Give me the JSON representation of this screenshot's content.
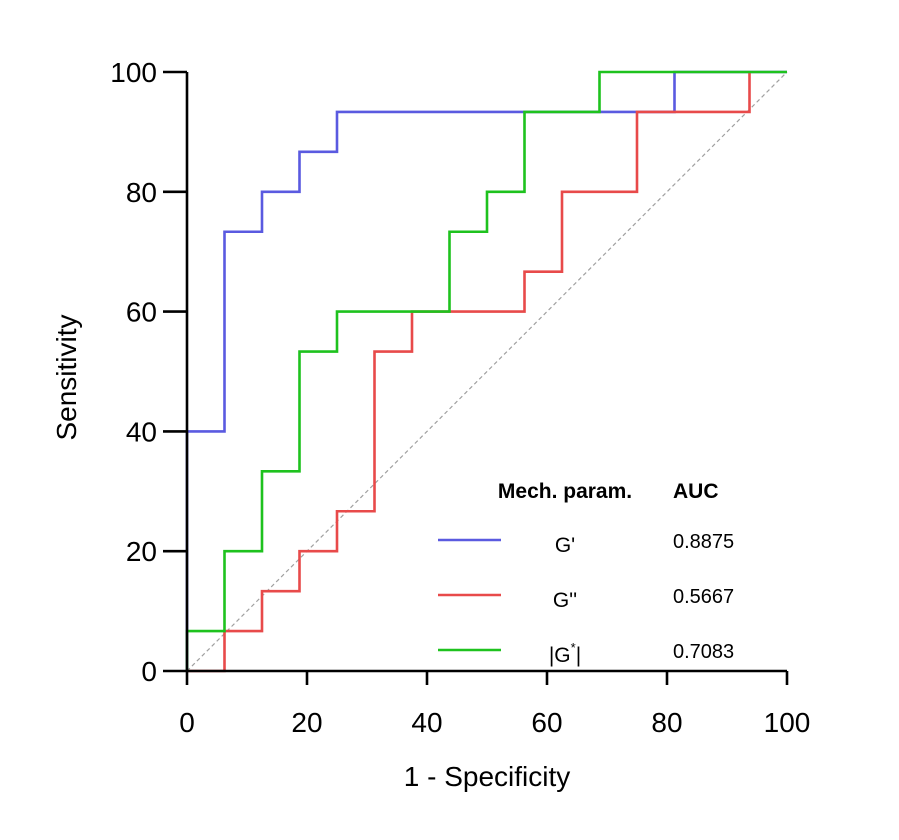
{
  "chart_data": {
    "type": "line",
    "step": true,
    "xlabel": "1 - Specificity",
    "ylabel": "Sensitivity",
    "xlim": [
      0,
      100
    ],
    "ylim": [
      0,
      100
    ],
    "xticks": [
      0,
      20,
      40,
      60,
      80,
      100
    ],
    "yticks": [
      0,
      20,
      40,
      60,
      80,
      100
    ],
    "x_tick_labels": [
      "0",
      "20",
      "40",
      "60",
      "80",
      "100"
    ],
    "y_tick_labels": [
      "0",
      "20",
      "40",
      "60",
      "80",
      "100"
    ],
    "reference_line": {
      "x": [
        0,
        100
      ],
      "y": [
        0,
        100
      ],
      "style": "dashed",
      "color": "#a0a0a0"
    },
    "legend": {
      "header_param": "Mech. param.",
      "header_auc": "AUC",
      "placement": "bottom-right"
    },
    "series": [
      {
        "name": "G'",
        "label_main": "G'",
        "label_sup": "",
        "label_close": "",
        "auc": "0.8875",
        "color": "#5a5ae0",
        "points": [
          [
            0,
            0
          ],
          [
            0,
            40
          ],
          [
            6.25,
            40
          ],
          [
            6.25,
            73.33
          ],
          [
            12.5,
            73.33
          ],
          [
            12.5,
            80
          ],
          [
            18.75,
            80
          ],
          [
            18.75,
            86.67
          ],
          [
            25,
            86.67
          ],
          [
            25,
            93.33
          ],
          [
            81.25,
            93.33
          ],
          [
            81.25,
            100
          ],
          [
            100,
            100
          ]
        ]
      },
      {
        "name": "G''",
        "label_main": "G''",
        "label_sup": "",
        "label_close": "",
        "auc": "0.5667",
        "color": "#e84a4a",
        "points": [
          [
            0,
            0
          ],
          [
            6.25,
            0
          ],
          [
            6.25,
            6.67
          ],
          [
            12.5,
            6.67
          ],
          [
            12.5,
            13.33
          ],
          [
            18.75,
            13.33
          ],
          [
            18.75,
            20
          ],
          [
            25,
            20
          ],
          [
            25,
            26.67
          ],
          [
            31.25,
            26.67
          ],
          [
            31.25,
            53.33
          ],
          [
            37.5,
            53.33
          ],
          [
            37.5,
            60
          ],
          [
            56.25,
            60
          ],
          [
            56.25,
            66.67
          ],
          [
            62.5,
            66.67
          ],
          [
            62.5,
            80
          ],
          [
            75,
            80
          ],
          [
            75,
            93.33
          ],
          [
            93.75,
            93.33
          ],
          [
            93.75,
            100
          ]
        ]
      },
      {
        "name": "|G*|",
        "label_main": "|G",
        "label_sup": "*",
        "label_close": "|",
        "auc": "0.7083",
        "color": "#1ec21e",
        "points": [
          [
            0,
            0
          ],
          [
            0,
            6.67
          ],
          [
            6.25,
            6.67
          ],
          [
            6.25,
            20
          ],
          [
            12.5,
            20
          ],
          [
            12.5,
            33.33
          ],
          [
            18.75,
            33.33
          ],
          [
            18.75,
            53.33
          ],
          [
            25,
            53.33
          ],
          [
            25,
            60
          ],
          [
            43.75,
            60
          ],
          [
            43.75,
            73.33
          ],
          [
            50,
            73.33
          ],
          [
            50,
            80
          ],
          [
            56.25,
            80
          ],
          [
            56.25,
            93.33
          ],
          [
            68.75,
            93.33
          ],
          [
            68.75,
            100
          ],
          [
            100,
            100
          ]
        ]
      }
    ]
  }
}
